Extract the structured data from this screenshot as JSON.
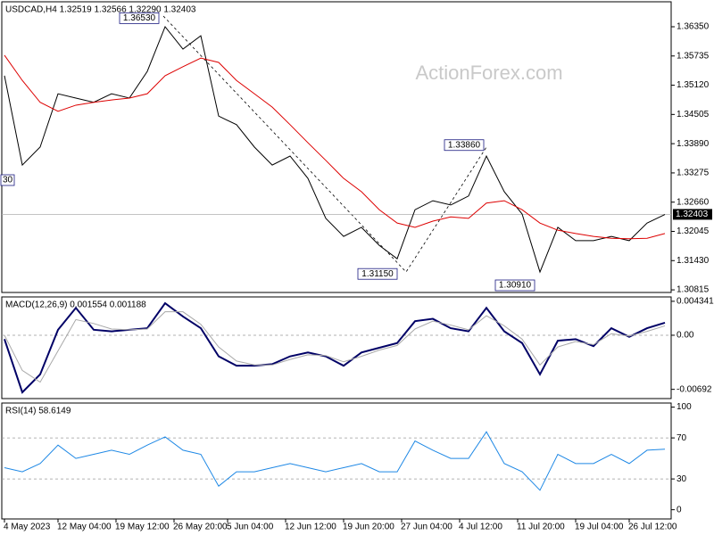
{
  "chart_data": [
    {
      "type": "line",
      "title": "USDCAD,H4 1.32519 1.32566 1.32290 1.32403",
      "watermark": "ActionForex.com",
      "xlim": [
        -0.15,
        37.35
      ],
      "ylim": [
        1.3076,
        1.36875
      ],
      "yticks": [
        {
          "value": 1.3635,
          "label": "1.36350"
        },
        1.35735,
        {
          "value": 1.3512,
          "label": "1.35120"
        },
        1.34505,
        {
          "value": 1.3389,
          "label": "1.33890"
        },
        1.33275,
        {
          "value": 1.3266,
          "label": "1.32660"
        },
        1.32045,
        {
          "value": 1.3143,
          "label": "1.31430"
        },
        1.30815
      ],
      "last_price": 1.32403,
      "annotations": [
        {
          "value": 1.3653,
          "label": "1.36530"
        },
        {
          "value": 1.3386,
          "label": "1.33860"
        },
        {
          "value": 1.3115,
          "label": "1.31150"
        },
        {
          "value": 1.3091,
          "label": "1.30910"
        }
      ],
      "clipped_label": "30",
      "series": [
        {
          "color": "#000000",
          "values": [
            1.3532,
            1.3344,
            1.3382,
            1.3494,
            1.3485,
            1.3476,
            1.3494,
            1.3485,
            1.3541,
            1.3635,
            1.3588,
            1.3616,
            1.3447,
            1.3429,
            1.3382,
            1.3344,
            1.3363,
            1.3316,
            1.3232,
            1.3194,
            1.3213,
            1.3175,
            1.3147,
            1.325,
            1.3269,
            1.326,
            1.3279,
            1.3363,
            1.3288,
            1.3241,
            1.3119,
            1.3213,
            1.3185,
            1.3185,
            1.3194,
            1.3185,
            1.3222,
            1.324
          ]
        },
        {
          "color": "#dd0000",
          "values": [
            1.3575,
            1.3522,
            1.3476,
            1.3457,
            1.347,
            1.3476,
            1.3481,
            1.3485,
            1.3494,
            1.3532,
            1.3551,
            1.3569,
            1.356,
            1.3522,
            1.3494,
            1.3466,
            1.3429,
            1.3391,
            1.3354,
            1.3316,
            1.3288,
            1.325,
            1.3222,
            1.3213,
            1.3226,
            1.3235,
            1.3232,
            1.3264,
            1.3269,
            1.325,
            1.3222,
            1.3207,
            1.32,
            1.3194,
            1.319,
            1.3189,
            1.319,
            1.32
          ]
        }
      ]
    },
    {
      "type": "line",
      "title": "MACD(12,26,9) 0.001554 0.001188",
      "xlim": [
        -0.15,
        37.35
      ],
      "ylim": [
        -0.0081,
        0.0049
      ],
      "yticks": [
        0.004341,
        {
          "value": 0,
          "label": "0.00"
        },
        -0.00692
      ],
      "levels": [
        0
      ],
      "series": [
        {
          "color": "#000066",
          "values": [
            -0.0005,
            -0.0073,
            -0.005,
            0.0007,
            0.0035,
            0.0007,
            0.0005,
            0.0007,
            0.0009,
            0.0041,
            0.0024,
            0.0009,
            -0.0027,
            -0.0039,
            -0.0039,
            -0.0037,
            -0.0027,
            -0.0022,
            -0.0027,
            -0.0039,
            -0.0022,
            -0.0016,
            -0.001,
            0.0018,
            0.0021,
            0.0009,
            0.0005,
            0.0035,
            0.0005,
            -0.001,
            -0.005,
            -0.0007,
            -0.0005,
            -0.0014,
            0.0009,
            -0.0002,
            0.0009,
            0.0016
          ]
        },
        {
          "color": "#a8a8a8",
          "values": [
            0,
            -0.0045,
            -0.006,
            -0.002,
            0.002,
            0.0015,
            0.0008,
            0.0007,
            0.0008,
            0.003,
            0.003,
            0.0014,
            -0.0015,
            -0.0033,
            -0.0038,
            -0.0038,
            -0.0031,
            -0.0025,
            -0.0026,
            -0.0034,
            -0.0027,
            -0.0019,
            -0.0013,
            0.0008,
            0.0018,
            0.0013,
            0.0007,
            0.0025,
            0.0012,
            -0.0005,
            -0.0038,
            -0.0015,
            -0.0008,
            -0.0012,
            0.0002,
            -0.0001,
            0.0005,
            0.0012
          ]
        }
      ]
    },
    {
      "type": "line",
      "title": "RSI(14) 58.6149",
      "xlim": [
        -0.15,
        37.35
      ],
      "ylim": [
        -9,
        104
      ],
      "yticks": [
        100,
        70,
        30,
        0
      ],
      "levels": [
        70,
        30
      ],
      "xticks": [
        {
          "value": 0,
          "label": "4 May 2023"
        },
        {
          "value": 3,
          "label": "12 May 04:00"
        },
        {
          "value": 6.25,
          "label": "19 May 12:00"
        },
        {
          "value": 9.5,
          "label": "26 May 20:00"
        },
        {
          "value": 12.5,
          "label": "5 Jun 04:00"
        },
        {
          "value": 15.75,
          "label": "12 Jun 12:00"
        },
        {
          "value": 19,
          "label": "19 Jun 20:00"
        },
        {
          "value": 22.25,
          "label": "27 Jun 04:00"
        },
        {
          "value": 25.5,
          "label": "4 Jul 12:00"
        },
        {
          "value": 28.75,
          "label": "11 Jul 20:00"
        },
        {
          "value": 32,
          "label": "19 Jul 04:00"
        },
        {
          "value": 35,
          "label": "26 Jul 12:00"
        }
      ],
      "series": [
        {
          "color": "#1e88e5",
          "values": [
            41,
            37,
            45,
            63,
            50,
            54,
            58,
            54,
            63,
            71,
            58,
            54,
            23,
            37,
            37,
            41,
            45,
            41,
            37,
            41,
            45,
            37,
            37,
            67,
            58,
            50,
            50,
            76,
            45,
            37,
            19,
            54,
            45,
            45,
            54,
            45,
            58,
            59
          ]
        }
      ]
    }
  ]
}
